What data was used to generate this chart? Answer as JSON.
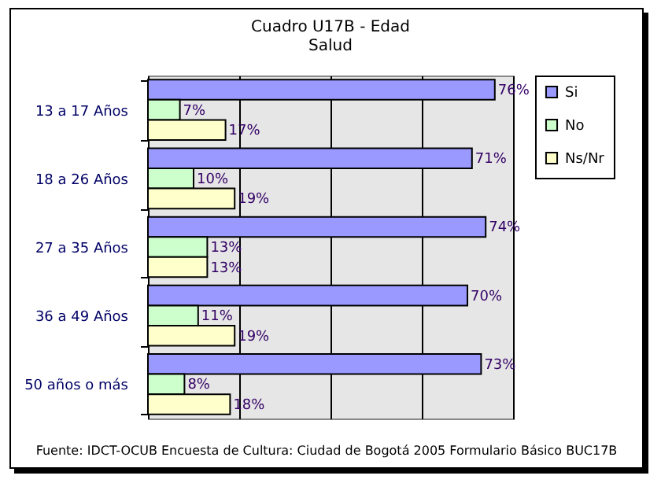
{
  "chart_data": {
    "type": "bar",
    "orientation": "horizontal",
    "title": "Cuadro U17B - Edad",
    "subtitle": "Salud",
    "categories": [
      "13 a 17 Años",
      "18 a 26 Años",
      "27 a 35 Años",
      "36 a 49 Años",
      "50 años o más"
    ],
    "series": [
      {
        "name": "Si",
        "color": "#9999ff",
        "values": [
          76,
          71,
          74,
          70,
          73
        ],
        "value_labels": [
          "76%",
          "71%",
          "74%",
          "70%",
          "73%"
        ]
      },
      {
        "name": "No",
        "color": "#ccffcc",
        "values": [
          7,
          10,
          13,
          11,
          8
        ],
        "value_labels": [
          "7%",
          "10%",
          "13%",
          "11%",
          "8%"
        ]
      },
      {
        "name": "Ns/Nr",
        "color": "#ffffcc",
        "values": [
          17,
          19,
          13,
          19,
          18
        ],
        "value_labels": [
          "17%",
          "19%",
          "13%",
          "19%",
          "18%"
        ]
      }
    ],
    "xlim": [
      0,
      80
    ],
    "xticks": [
      {
        "value": 0,
        "label": null
      },
      {
        "value": 20,
        "label": null
      },
      {
        "value": 40,
        "label": null
      },
      {
        "value": 60,
        "label": null
      },
      {
        "value": 80,
        "label": null
      }
    ],
    "grid": "x",
    "legend": "right",
    "annotations": [
      "Fuente: IDCT-OCUB Encuesta de Cultura: Ciudad de Bogotá 2005 Formulario Básico BUC17B"
    ]
  }
}
